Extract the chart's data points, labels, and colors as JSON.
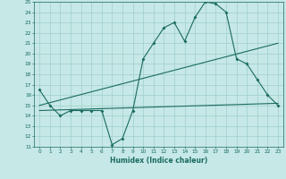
{
  "bg_color": "#c6e8e6",
  "grid_color": "#9fcfcc",
  "line_color": "#1a6b60",
  "xlabel": "Humidex (Indice chaleur)",
  "xlim": [
    -0.5,
    23.5
  ],
  "ylim": [
    11,
    25
  ],
  "xticks": [
    0,
    1,
    2,
    3,
    4,
    5,
    6,
    7,
    8,
    9,
    10,
    11,
    12,
    13,
    14,
    15,
    16,
    17,
    18,
    19,
    20,
    21,
    22,
    23
  ],
  "yticks": [
    11,
    12,
    13,
    14,
    15,
    16,
    17,
    18,
    19,
    20,
    21,
    22,
    23,
    24,
    25
  ],
  "line1_x": [
    0,
    1,
    2,
    3,
    4,
    5,
    6,
    7,
    8,
    9,
    10,
    11,
    12,
    13,
    14,
    15,
    16,
    17,
    18,
    19,
    20,
    21,
    22,
    23
  ],
  "line1_y": [
    16.5,
    15.0,
    14.0,
    14.5,
    14.5,
    14.5,
    14.5,
    11.2,
    11.8,
    14.5,
    19.5,
    21.0,
    22.5,
    23.0,
    21.2,
    23.5,
    25.0,
    24.8,
    24.0,
    19.5,
    19.0,
    17.5,
    16.0,
    15.0
  ],
  "line2_x": [
    0,
    23
  ],
  "line2_y": [
    15.0,
    21.0
  ],
  "line3_x": [
    0,
    23
  ],
  "line3_y": [
    14.5,
    15.2
  ]
}
